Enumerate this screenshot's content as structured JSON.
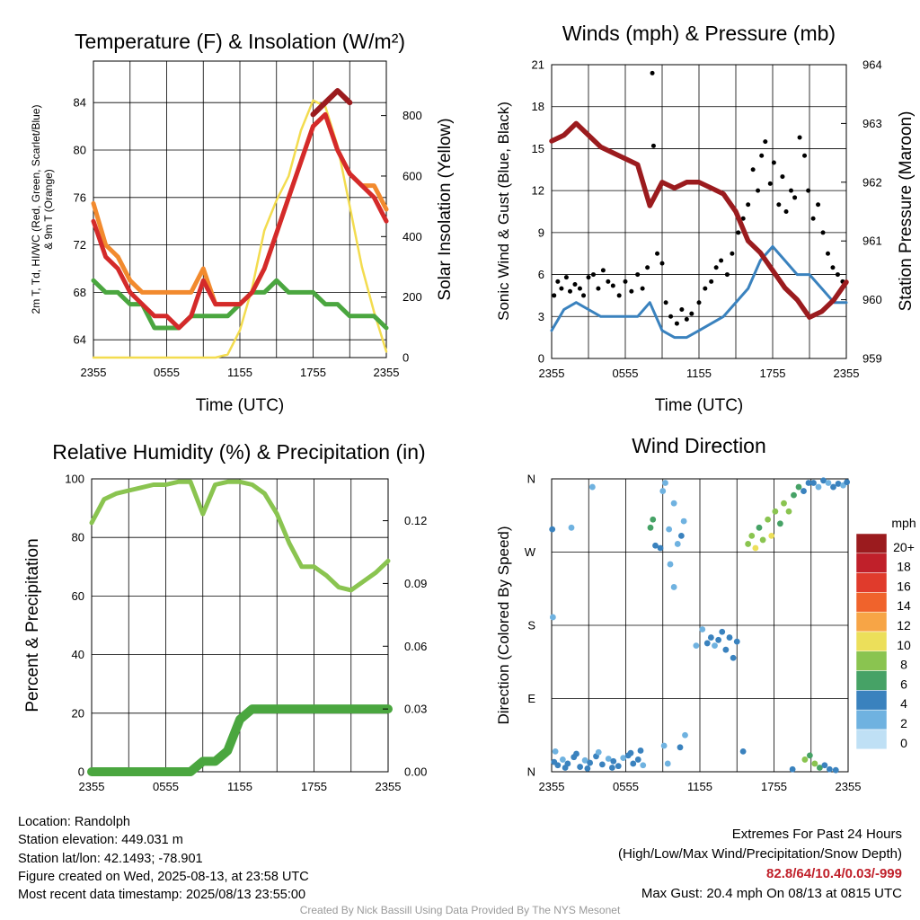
{
  "panels": {
    "temperature": {
      "title": "Temperature (F) & Insolation (W/m²)",
      "xlabel": "Time (UTC)",
      "ylabel_left_line1": "2m T, Td, HI/WC (Red, Green, Scarlet/Blue)",
      "ylabel_left_line2": "& 9m T (Orange)",
      "ylabel_right": "Solar Insolation (Yellow)",
      "xticks": [
        "2355",
        "0555",
        "1155",
        "1755",
        "2355"
      ],
      "yticks_left": [
        "64",
        "68",
        "72",
        "76",
        "80",
        "84"
      ],
      "yticks_right": [
        "0",
        "200",
        "400",
        "600",
        "800"
      ]
    },
    "winds": {
      "title": "Winds (mph) & Pressure (mb)",
      "xlabel": "Time (UTC)",
      "ylabel_left": "Sonic Wind & Gust (Blue, Black)",
      "ylabel_right": "Station Pressure (Maroon)",
      "xticks": [
        "2355",
        "0555",
        "1155",
        "1755",
        "2355"
      ],
      "yticks_left": [
        "0",
        "3",
        "6",
        "9",
        "12",
        "15",
        "18",
        "21"
      ],
      "yticks_right": [
        "959",
        "960",
        "961",
        "962",
        "963",
        "964"
      ]
    },
    "humidity": {
      "title": "Relative Humidity (%) & Precipitation (in)",
      "ylabel_left": "Percent & Precipitation",
      "xticks": [
        "2355",
        "0555",
        "1155",
        "1755",
        "2355"
      ],
      "yticks_left": [
        "0",
        "20",
        "40",
        "60",
        "80",
        "100"
      ],
      "yticks_right": [
        "0.00",
        "0.03",
        "0.06",
        "0.09",
        "0.12"
      ]
    },
    "direction": {
      "title": "Wind Direction",
      "ylabel_left": "Direction (Colored By Speed)",
      "xticks": [
        "2355",
        "0555",
        "1155",
        "1755",
        "2355"
      ],
      "yticks_left": [
        "N",
        "E",
        "S",
        "W",
        "N"
      ],
      "legend_title": "mph",
      "legend_labels": [
        "20+",
        "18",
        "16",
        "14",
        "12",
        "10",
        "8",
        "6",
        "4",
        "2",
        "0"
      ],
      "legend_colors": [
        "#9b1b1e",
        "#c0202a",
        "#e03b2c",
        "#f0632c",
        "#f7a546",
        "#ecdf5a",
        "#8ac450",
        "#46a266",
        "#3a82be",
        "#6fb2e0",
        "#bfe0f5"
      ]
    }
  },
  "info": {
    "location": "Location: Randolph",
    "elevation": "Station elevation: 449.031 m",
    "latlon": "Station lat/lon: 42.1493; -78.901",
    "created": "Figure created on Wed, 2025-08-13, at 23:58 UTC",
    "recent": "Most recent data timestamp: 2025/08/13 23:55:00"
  },
  "extremes": {
    "title": "Extremes For Past 24 Hours",
    "subtitle": "(High/Low/Max Wind/Precipitation/Snow Depth)",
    "values": "82.8/64/10.4/0.03/-999",
    "max_gust": "Max Gust: 20.4 mph On 08/13 at 0815 UTC"
  },
  "credit": "Created By Nick Bassill Using Data Provided By The NYS Mesonet",
  "chart_data": [
    {
      "type": "line",
      "x_hours": [
        0,
        1,
        2,
        3,
        4,
        5,
        6,
        7,
        8,
        9,
        10,
        11,
        12,
        13,
        14,
        15,
        16,
        17,
        18,
        19,
        20,
        21,
        22,
        23,
        24
      ],
      "series": [
        {
          "color": "#d42a2a",
          "axis": "left",
          "values": [
            74,
            71,
            70,
            68,
            67,
            66,
            66,
            65,
            66,
            69,
            67,
            67,
            67,
            68,
            70,
            73,
            76,
            79,
            82,
            83,
            80,
            78,
            77,
            76,
            74
          ]
        },
        {
          "color": "#f28a2e",
          "axis": "left",
          "values": [
            75.5,
            72,
            71,
            69,
            68,
            68,
            68,
            68,
            68,
            70,
            67,
            67,
            67,
            68,
            70,
            73,
            76,
            79,
            82,
            83,
            80,
            78,
            77,
            77,
            75
          ]
        },
        {
          "color": "#9b1b1e",
          "axis": "left",
          "values": [
            null,
            null,
            null,
            null,
            null,
            null,
            null,
            null,
            null,
            null,
            null,
            null,
            null,
            null,
            null,
            null,
            null,
            null,
            83,
            84,
            85,
            84,
            null,
            null,
            null
          ]
        },
        {
          "color": "#4aa63f",
          "axis": "left",
          "values": [
            69,
            68,
            68,
            67,
            67,
            65,
            65,
            65,
            66,
            66,
            66,
            66,
            67,
            68,
            68,
            69,
            68,
            68,
            68,
            67,
            67,
            66,
            66,
            66,
            65
          ]
        },
        {
          "color": "#f3dc4f",
          "axis": "right",
          "values": [
            0,
            0,
            0,
            0,
            0,
            0,
            0,
            0,
            0,
            0,
            0,
            10,
            90,
            230,
            420,
            520,
            600,
            750,
            850,
            830,
            700,
            500,
            300,
            150,
            20
          ]
        }
      ],
      "left_range": [
        62.5,
        87.5
      ],
      "right_range": [
        0,
        980
      ]
    },
    {
      "type": "line",
      "x_hours": [
        0,
        1,
        2,
        3,
        4,
        5,
        6,
        7,
        8,
        9,
        10,
        11,
        12,
        13,
        14,
        15,
        16,
        17,
        18,
        19,
        20,
        21,
        22,
        23,
        24
      ],
      "series": [
        {
          "color": "#3a82be",
          "axis": "left",
          "values": [
            2,
            3.5,
            4,
            3.5,
            3,
            3,
            3,
            3,
            4,
            2,
            1.5,
            1.5,
            2,
            2.5,
            3,
            4,
            5,
            7,
            8,
            7,
            6,
            6,
            5,
            4,
            4
          ]
        },
        {
          "color": "#9b1b1e",
          "axis": "right",
          "values": [
            962.7,
            962.8,
            963.0,
            962.8,
            962.6,
            962.5,
            962.4,
            962.3,
            961.6,
            962.0,
            961.9,
            962.0,
            962.0,
            961.9,
            961.8,
            961.5,
            961.0,
            960.8,
            960.5,
            960.2,
            960.0,
            959.7,
            959.8,
            960.0,
            960.3
          ]
        }
      ],
      "gust_points": [
        [
          0.2,
          4.5
        ],
        [
          0.5,
          5.5
        ],
        [
          0.8,
          5
        ],
        [
          1.2,
          5.8
        ],
        [
          1.5,
          4.8
        ],
        [
          1.9,
          5.3
        ],
        [
          2.3,
          5
        ],
        [
          2.6,
          4.5
        ],
        [
          3,
          5.8
        ],
        [
          3.4,
          6
        ],
        [
          3.8,
          5
        ],
        [
          4.2,
          6.3
        ],
        [
          4.6,
          5.5
        ],
        [
          5,
          5.2
        ],
        [
          5.5,
          4.5
        ],
        [
          6,
          5.5
        ],
        [
          6.5,
          4.8
        ],
        [
          7,
          6
        ],
        [
          7.4,
          5
        ],
        [
          7.8,
          6.5
        ],
        [
          8.2,
          20.4
        ],
        [
          8.3,
          15.2
        ],
        [
          8.6,
          7.5
        ],
        [
          9,
          6.8
        ],
        [
          9.3,
          4
        ],
        [
          9.7,
          3
        ],
        [
          10.2,
          2.5
        ],
        [
          10.6,
          3.5
        ],
        [
          11,
          2.8
        ],
        [
          11.4,
          3.2
        ],
        [
          12,
          4
        ],
        [
          12.5,
          5
        ],
        [
          13,
          5.5
        ],
        [
          13.4,
          6.5
        ],
        [
          13.8,
          7
        ],
        [
          14.3,
          6
        ],
        [
          14.7,
          7.5
        ],
        [
          15.2,
          9
        ],
        [
          15.6,
          10
        ],
        [
          16,
          11
        ],
        [
          16.4,
          13.5
        ],
        [
          16.8,
          12
        ],
        [
          17.1,
          14.5
        ],
        [
          17.4,
          15.5
        ],
        [
          17.8,
          12.5
        ],
        [
          18.1,
          14
        ],
        [
          18.5,
          11
        ],
        [
          18.8,
          13
        ],
        [
          19.1,
          10.5
        ],
        [
          19.5,
          12
        ],
        [
          19.8,
          11.5
        ],
        [
          20.2,
          15.8
        ],
        [
          20.6,
          14.5
        ],
        [
          20.9,
          12
        ],
        [
          21.3,
          10
        ],
        [
          21.7,
          11
        ],
        [
          22.1,
          9
        ],
        [
          22.5,
          7.5
        ],
        [
          22.9,
          6.5
        ],
        [
          23.3,
          6
        ],
        [
          23.7,
          5.5
        ]
      ],
      "left_range": [
        0,
        21
      ],
      "right_range": [
        959,
        964
      ]
    },
    {
      "type": "line",
      "x_hours": [
        0,
        1,
        2,
        3,
        4,
        5,
        6,
        7,
        8,
        9,
        10,
        11,
        12,
        13,
        14,
        15,
        16,
        17,
        18,
        19,
        20,
        21,
        22,
        23,
        24
      ],
      "series": [
        {
          "color": "#8ac450",
          "axis": "left",
          "values": [
            85,
            93,
            95,
            96,
            97,
            98,
            98,
            99,
            99,
            88,
            98,
            99,
            99,
            98,
            95,
            88,
            78,
            70,
            70,
            67,
            63,
            62,
            65,
            68,
            72
          ]
        },
        {
          "color": "#4aa63f",
          "axis": "right",
          "values": [
            0,
            0,
            0,
            0,
            0,
            0,
            0,
            0,
            0,
            0.005,
            0.005,
            0.01,
            0.025,
            0.03,
            0.03,
            0.03,
            0.03,
            0.03,
            0.03,
            0.03,
            0.03,
            0.03,
            0.03,
            0.03,
            0.03
          ]
        }
      ],
      "left_range": [
        0,
        100
      ],
      "right_range": [
        0,
        0.14
      ]
    },
    {
      "type": "scatter",
      "y_range": [
        0,
        360
      ],
      "points": [
        [
          0.2,
          12,
          3
        ],
        [
          0.5,
          8,
          4
        ],
        [
          0.9,
          15,
          2
        ],
        [
          1.3,
          10,
          3
        ],
        [
          1.8,
          18,
          4
        ],
        [
          2.3,
          6,
          3
        ],
        [
          2.7,
          14,
          2
        ],
        [
          3.1,
          11,
          3
        ],
        [
          3.6,
          19,
          4
        ],
        [
          4.1,
          9,
          3
        ],
        [
          4.6,
          16,
          2
        ],
        [
          5.0,
          13,
          3
        ],
        [
          5.4,
          7,
          4
        ],
        [
          5.8,
          17,
          2
        ],
        [
          6.2,
          20,
          3
        ],
        [
          6.6,
          10,
          4
        ],
        [
          7.0,
          15,
          3
        ],
        [
          7.4,
          8,
          2
        ],
        [
          0.3,
          25,
          2
        ],
        [
          1.1,
          5,
          4
        ],
        [
          2.0,
          22,
          3
        ],
        [
          2.9,
          4,
          4
        ],
        [
          3.8,
          24,
          2
        ],
        [
          4.9,
          5,
          3
        ],
        [
          6.4,
          23,
          4
        ],
        [
          7.2,
          26,
          3
        ],
        [
          1.6,
          300,
          2
        ],
        [
          3.3,
          350,
          2
        ],
        [
          0.1,
          190,
          2
        ],
        [
          0.05,
          298,
          4
        ],
        [
          8.0,
          300,
          5
        ],
        [
          8.2,
          310,
          6
        ],
        [
          8.4,
          278,
          4
        ],
        [
          8.8,
          275,
          3
        ],
        [
          9.0,
          345,
          2
        ],
        [
          9.2,
          355,
          1
        ],
        [
          9.5,
          298,
          2
        ],
        [
          9.9,
          330,
          1
        ],
        [
          10.2,
          280,
          2
        ],
        [
          10.5,
          290,
          3
        ],
        [
          10.7,
          308,
          2
        ],
        [
          9.6,
          255,
          1
        ],
        [
          9.9,
          227,
          1
        ],
        [
          12.6,
          158,
          3
        ],
        [
          12.9,
          165,
          4
        ],
        [
          13.2,
          155,
          2
        ],
        [
          13.5,
          162,
          4
        ],
        [
          13.8,
          172,
          3
        ],
        [
          14.1,
          150,
          4
        ],
        [
          14.4,
          165,
          3
        ],
        [
          14.7,
          140,
          4
        ],
        [
          15.0,
          160,
          3
        ],
        [
          12.2,
          175,
          2
        ],
        [
          11.7,
          155,
          2
        ],
        [
          10.4,
          30,
          4
        ],
        [
          10.8,
          45,
          2
        ],
        [
          9.4,
          10,
          2
        ],
        [
          9.1,
          32,
          1
        ],
        [
          15.9,
          280,
          8
        ],
        [
          16.2,
          290,
          7
        ],
        [
          16.5,
          275,
          10
        ],
        [
          16.8,
          300,
          6
        ],
        [
          17.1,
          285,
          8
        ],
        [
          17.5,
          310,
          7
        ],
        [
          17.8,
          290,
          9
        ],
        [
          18.1,
          320,
          8
        ],
        [
          18.5,
          305,
          6
        ],
        [
          18.8,
          330,
          7
        ],
        [
          19.2,
          320,
          8
        ],
        [
          19.6,
          340,
          6
        ],
        [
          20.0,
          350,
          5
        ],
        [
          20.4,
          345,
          4
        ],
        [
          20.8,
          355,
          4
        ],
        [
          21.2,
          355,
          3
        ],
        [
          21.6,
          350,
          2
        ],
        [
          22.0,
          358,
          3
        ],
        [
          22.4,
          355,
          2
        ],
        [
          22.8,
          350,
          4
        ],
        [
          23.2,
          354,
          3
        ],
        [
          23.6,
          352,
          2
        ],
        [
          23.9,
          356,
          4
        ],
        [
          20.5,
          15,
          8
        ],
        [
          20.9,
          20,
          6
        ],
        [
          21.3,
          10,
          7
        ],
        [
          21.7,
          5,
          5
        ],
        [
          22.1,
          8,
          4
        ],
        [
          22.5,
          3,
          4
        ],
        [
          23.0,
          2,
          3
        ],
        [
          19.5,
          3,
          4
        ],
        [
          15.5,
          25,
          4
        ]
      ]
    }
  ]
}
